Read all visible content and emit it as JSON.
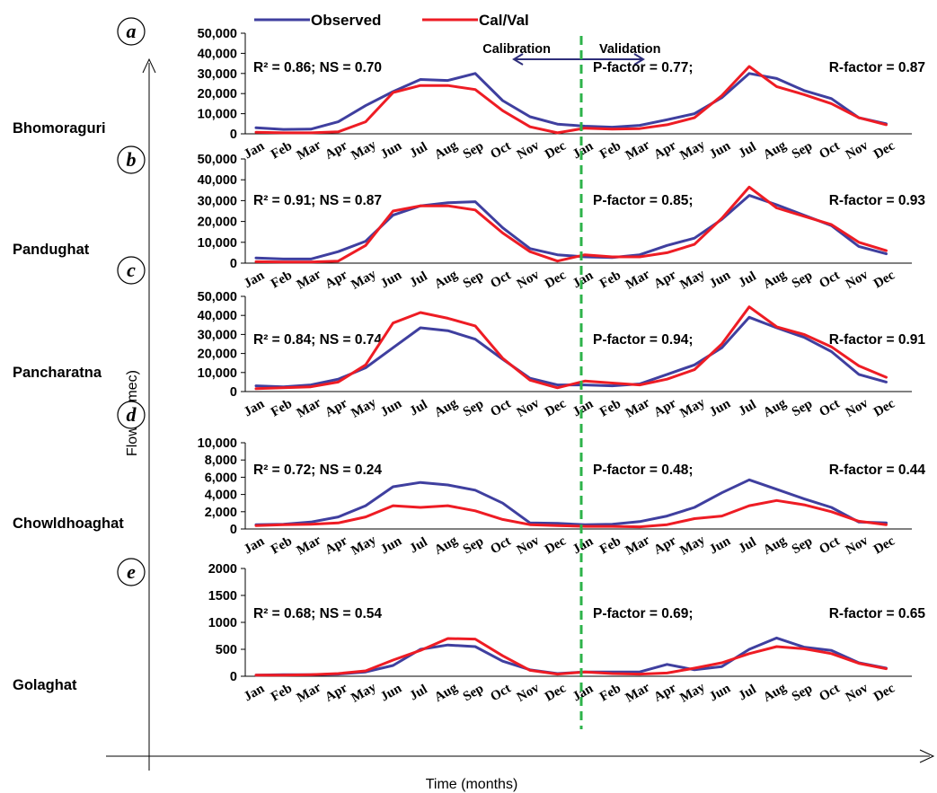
{
  "legend": {
    "observed_label": "Observed",
    "calval_label": "Cal/Val",
    "calibration_label": "Calibration",
    "validation_label": "Validation"
  },
  "axes": {
    "y_title": "Flow (cumec)",
    "x_title": "Time (months)"
  },
  "colors": {
    "observed": "#3f3f9f",
    "calval": "#ee1c24",
    "divider": "#2db34a",
    "arrow": "#2e2e7a"
  },
  "chart_data": [
    {
      "type": "line",
      "letter": "a",
      "station": "Bhomoraguri",
      "categories": [
        "Jan",
        "Feb",
        "Mar",
        "Apr",
        "May",
        "Jun",
        "Jul",
        "Aug",
        "Sep",
        "Oct",
        "Nov",
        "Dec",
        "Jan",
        "Feb",
        "Mar",
        "Apr",
        "May",
        "Jun",
        "Jul",
        "Aug",
        "Sep",
        "Oct",
        "Nov",
        "Dec"
      ],
      "ylim": [
        0,
        50000
      ],
      "yticks": [
        "0",
        "10,000",
        "20,000",
        "30,000",
        "40,000",
        "50,000"
      ],
      "stat_left": "R² = 0.86;   NS = 0.70",
      "stat_mid": "P-factor =  0.77;",
      "stat_right": "R-factor = 0.87",
      "series": [
        {
          "name": "Observed",
          "values": [
            3000,
            2200,
            2300,
            6000,
            14000,
            21000,
            27000,
            26500,
            30000,
            16500,
            8500,
            4800,
            3800,
            3300,
            4200,
            7000,
            10000,
            18000,
            30000,
            27500,
            21500,
            17500,
            8000,
            5000
          ]
        },
        {
          "name": "Cal/Val",
          "values": [
            800,
            500,
            500,
            1000,
            6000,
            20500,
            24000,
            24000,
            22000,
            11500,
            3500,
            500,
            2800,
            2300,
            2600,
            4500,
            8000,
            19000,
            33500,
            23500,
            19500,
            15000,
            8000,
            4500
          ]
        }
      ]
    },
    {
      "type": "line",
      "letter": "b",
      "station": "Pandughat",
      "categories": [
        "Jan",
        "Feb",
        "Mar",
        "Apr",
        "May",
        "Jun",
        "Jul",
        "Aug",
        "Sep",
        "Oct",
        "Nov",
        "Dec",
        "Jan",
        "Feb",
        "Mar",
        "Apr",
        "May",
        "Jun",
        "Jul",
        "Aug",
        "Sep",
        "Oct",
        "Nov",
        "Dec"
      ],
      "ylim": [
        0,
        50000
      ],
      "yticks": [
        "0",
        "10,000",
        "20,000",
        "30,000",
        "40,000",
        "50,000"
      ],
      "stat_left": "R² = 0.91;   NS = 0.87",
      "stat_mid": "P-factor =  0.85;",
      "stat_right": "R-factor = 0.93",
      "series": [
        {
          "name": "Observed",
          "values": [
            2500,
            2000,
            2000,
            5500,
            10500,
            23000,
            27500,
            29000,
            29500,
            17000,
            7000,
            4000,
            3000,
            2700,
            4000,
            8500,
            12000,
            21000,
            32500,
            28000,
            23000,
            18000,
            8000,
            4500
          ]
        },
        {
          "name": "Cal/Val",
          "values": [
            700,
            500,
            500,
            1000,
            8500,
            25000,
            27500,
            27500,
            25500,
            14500,
            5500,
            1000,
            4000,
            3000,
            3000,
            5000,
            9000,
            21500,
            36500,
            26500,
            22500,
            18500,
            10000,
            6000
          ]
        }
      ]
    },
    {
      "type": "line",
      "letter": "c",
      "station": "Pancharatna",
      "categories": [
        "Jan",
        "Feb",
        "Mar",
        "Apr",
        "May",
        "Jun",
        "Jul",
        "Aug",
        "Sep",
        "Oct",
        "Nov",
        "Dec",
        "Jan",
        "Feb",
        "Mar",
        "Apr",
        "May",
        "Jun",
        "Jul",
        "Aug",
        "Sep",
        "Oct",
        "Nov",
        "Dec"
      ],
      "ylim": [
        0,
        50000
      ],
      "yticks": [
        "0",
        "10,000",
        "20,000",
        "30,000",
        "40,000",
        "50,000"
      ],
      "stat_left": "R² = 0.84; NS = 0.74",
      "stat_mid": "P-factor =  0.94;",
      "stat_right": "R-factor = 0.91",
      "series": [
        {
          "name": "Observed",
          "values": [
            3000,
            2500,
            3500,
            6500,
            12500,
            23000,
            33500,
            32000,
            27500,
            17000,
            7000,
            3500,
            3500,
            3000,
            4000,
            9000,
            14000,
            23000,
            39000,
            33500,
            28500,
            21000,
            9000,
            5000
          ]
        },
        {
          "name": "Cal/Val",
          "values": [
            1500,
            2000,
            2500,
            5000,
            14000,
            36000,
            41500,
            38500,
            34500,
            17500,
            6000,
            2000,
            5500,
            4500,
            3500,
            6500,
            11500,
            25000,
            44500,
            34000,
            30000,
            23500,
            13500,
            7500
          ]
        }
      ]
    },
    {
      "type": "line",
      "letter": "d",
      "station": "Chowldhoaghat",
      "categories": [
        "Jan",
        "Feb",
        "Mar",
        "Apr",
        "May",
        "Jun",
        "Jul",
        "Aug",
        "Sep",
        "Oct",
        "Nov",
        "Dec",
        "Jan",
        "Feb",
        "Mar",
        "Apr",
        "May",
        "Jun",
        "Jul",
        "Aug",
        "Sep",
        "Oct",
        "Nov",
        "Dec"
      ],
      "ylim": [
        0,
        10000
      ],
      "yticks": [
        "0",
        "2,000",
        "4,000",
        "6,000",
        "8,000",
        "10,000"
      ],
      "stat_left": "R² = 0.72; NS = 0.24",
      "stat_mid": "P-factor =  0.48;",
      "stat_right": "R-factor = 0.44",
      "series": [
        {
          "name": "Observed",
          "values": [
            500,
            550,
            800,
            1400,
            2700,
            4900,
            5400,
            5100,
            4500,
            3000,
            700,
            650,
            500,
            550,
            850,
            1500,
            2500,
            4200,
            5700,
            4600,
            3500,
            2500,
            800,
            700
          ]
        },
        {
          "name": "Cal/Val",
          "values": [
            400,
            500,
            550,
            700,
            1400,
            2700,
            2500,
            2700,
            2100,
            1100,
            500,
            400,
            300,
            300,
            250,
            500,
            1200,
            1500,
            2700,
            3300,
            2800,
            2000,
            900,
            500
          ]
        }
      ]
    },
    {
      "type": "line",
      "letter": "e",
      "station": "Golaghat",
      "categories": [
        "Jan",
        "Feb",
        "Mar",
        "Apr",
        "May",
        "Jun",
        "Jul",
        "Aug",
        "Sep",
        "Oct",
        "Nov",
        "Dec",
        "Jan",
        "Feb",
        "Mar",
        "Apr",
        "May",
        "Jun",
        "Jul",
        "Aug",
        "Sep",
        "Oct",
        "Nov",
        "Dec"
      ],
      "ylim": [
        0,
        2000
      ],
      "yticks": [
        "0",
        "500",
        "1000",
        "1500",
        "2000"
      ],
      "stat_left": "R² = 0.68; NS = 0.54",
      "stat_mid": "P-factor =  0.69;",
      "stat_right": "R-factor = 0.65",
      "series": [
        {
          "name": "Observed",
          "values": [
            20,
            30,
            30,
            40,
            80,
            200,
            500,
            580,
            550,
            280,
            120,
            50,
            80,
            80,
            80,
            220,
            120,
            180,
            500,
            710,
            540,
            480,
            250,
            150
          ]
        },
        {
          "name": "Cal/Val",
          "values": [
            20,
            20,
            30,
            50,
            100,
            300,
            480,
            700,
            690,
            380,
            110,
            40,
            80,
            50,
            40,
            60,
            150,
            250,
            420,
            550,
            510,
            420,
            240,
            140
          ]
        }
      ]
    }
  ]
}
